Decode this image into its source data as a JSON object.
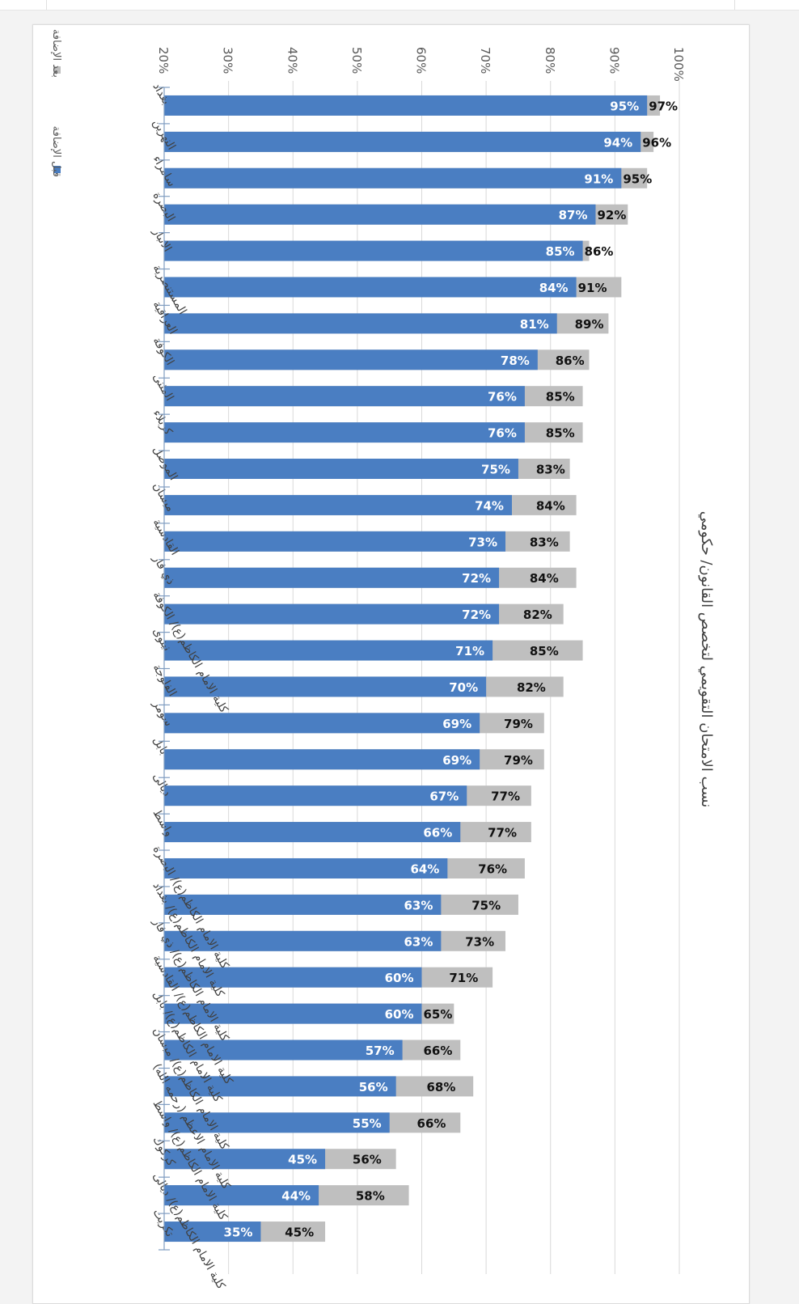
{
  "chart_data": {
    "type": "bar",
    "orientation": "horizontal",
    "rotation": "page rotated 90° clockwise",
    "title": "نسب الامتحان التقويمي لتخصص القانون/ حكومي",
    "xlabel": "",
    "ylabel": "",
    "xlim": [
      0.2,
      1.0
    ],
    "x_ticks": [
      "20%",
      "30%",
      "40%",
      "50%",
      "60%",
      "70%",
      "80%",
      "90%",
      "100%"
    ],
    "x_tick_values": [
      0.2,
      0.3,
      0.4,
      0.5,
      0.6,
      0.7,
      0.8,
      0.9,
      1.0
    ],
    "grid": true,
    "legend_position": "left",
    "categories": [
      "بغداد",
      "النهرين",
      "سامراء",
      "البصرة",
      "الانبار",
      "المستنصرية",
      "العراقية",
      "الكوفة",
      "المثنى",
      "كربلاء",
      "الموصل",
      "ميسان",
      "القادسية",
      "ذي قار",
      "كلية الامام الكاظم(ع)/ الكوفة",
      "نينوى",
      "الفلوجة",
      "سومر",
      "بابل",
      "ديالى",
      "واسط",
      "كلية الامام الكاظم(ع)/ البصرة",
      "كلية الامام الكاظم(ع)/ بغداد",
      "كلية الامام الكاظم(ع)/ ذي قار",
      "كلية الامام الكاظم(ع)/ القادسية",
      "كلية الامام الكاظم(ع)/ بابل",
      "كلية الامام الكاظم(ع)/ ميسان",
      "كلية الامام الاعظم (رحمه الله)",
      "كلية الامام الكاظم(ع)/ واسط",
      "كركوك",
      "كلية الامام الكاظم(ع)/ ديالى",
      "تكريت"
    ],
    "series": [
      {
        "name": "قبل الإضافة",
        "color": "#4A7EC2",
        "values": [
          95,
          94,
          91,
          87,
          85,
          84,
          81,
          78,
          76,
          76,
          75,
          74,
          73,
          72,
          72,
          71,
          70,
          69,
          69,
          67,
          66,
          64,
          63,
          63,
          60,
          60,
          57,
          56,
          55,
          45,
          44,
          35
        ],
        "labels": [
          "95%",
          "94%",
          "91%",
          "87%",
          "85%",
          "84%",
          "81%",
          "78%",
          "76%",
          "76%",
          "75%",
          "74%",
          "73%",
          "72%",
          "72%",
          "71%",
          "70%",
          "69%",
          "69%",
          "67%",
          "66%",
          "64%",
          "63%",
          "63%",
          "60%",
          "60%",
          "57%",
          "56%",
          "55%",
          "45%",
          "44%",
          "35%"
        ]
      },
      {
        "name": "بعد الإضافة",
        "color": "#BFBFBF",
        "values": [
          97,
          96,
          95,
          92,
          86,
          91,
          89,
          86,
          85,
          85,
          83,
          84,
          83,
          84,
          82,
          85,
          82,
          79,
          79,
          77,
          77,
          76,
          75,
          73,
          71,
          65,
          66,
          68,
          66,
          56,
          58,
          45
        ],
        "labels": [
          "97%",
          "96%",
          "95%",
          "92%",
          "86%",
          "91%",
          "89%",
          "86%",
          "85%",
          "85%",
          "83%",
          "84%",
          "83%",
          "84%",
          "82%",
          "85%",
          "82%",
          "79%",
          "79%",
          "77%",
          "77%",
          "76%",
          "75%",
          "73%",
          "71%",
          "65%",
          "66%",
          "68%",
          "66%",
          "56%",
          "58%",
          "45%"
        ]
      }
    ]
  }
}
